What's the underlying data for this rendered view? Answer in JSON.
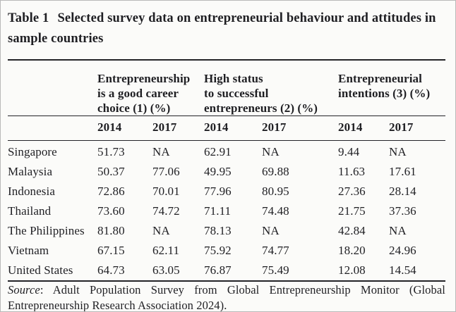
{
  "title": {
    "label": "Table 1",
    "line1": "Selected survey data on entrepreneurial behaviour and attitudes in",
    "line2": "sample countries"
  },
  "table": {
    "col_groups": [
      {
        "label": "Entrepreneurship is a good career choice (1) (%)",
        "lines": [
          "Entrepreneurship",
          "is a good career",
          "choice (1) (%)"
        ]
      },
      {
        "label": "High status to successful entrepreneurs (2) (%)",
        "lines": [
          "High status",
          "to successful",
          "entrepreneurs (2) (%)"
        ]
      },
      {
        "label": "Entrepreneurial intentions (3) (%)",
        "lines": [
          "Entrepreneurial",
          "intentions (3) (%)"
        ]
      }
    ],
    "years": [
      "2014",
      "2017",
      "2014",
      "2017",
      "2014",
      "2017"
    ],
    "rows": [
      {
        "country": "Singapore",
        "values": [
          "51.73",
          "NA",
          "62.91",
          "NA",
          "9.44",
          "NA"
        ]
      },
      {
        "country": "Malaysia",
        "values": [
          "50.37",
          "77.06",
          "49.95",
          "69.88",
          "11.63",
          "17.61"
        ]
      },
      {
        "country": "Indonesia",
        "values": [
          "72.86",
          "70.01",
          "77.96",
          "80.95",
          "27.36",
          "28.14"
        ]
      },
      {
        "country": "Thailand",
        "values": [
          "73.60",
          "74.72",
          "71.11",
          "74.48",
          "21.75",
          "37.36"
        ]
      },
      {
        "country": "The Philippines",
        "values": [
          "81.80",
          "NA",
          "78.13",
          "NA",
          "42.84",
          "NA"
        ]
      },
      {
        "country": "Vietnam",
        "values": [
          "67.15",
          "62.11",
          "75.92",
          "74.77",
          "18.20",
          "24.96"
        ]
      },
      {
        "country": "United States",
        "values": [
          "64.73",
          "63.05",
          "76.87",
          "75.49",
          "12.08",
          "14.54"
        ]
      }
    ]
  },
  "source": {
    "label": "Source",
    "line1_rest": ": Adult Population Survey from Global Entrepreneurship Monitor (Global",
    "line2": "Entrepreneurship Research Association 2024)."
  },
  "colors": {
    "text": "#1f1f23",
    "rule": "#232327",
    "background": "#fbfbf9"
  }
}
